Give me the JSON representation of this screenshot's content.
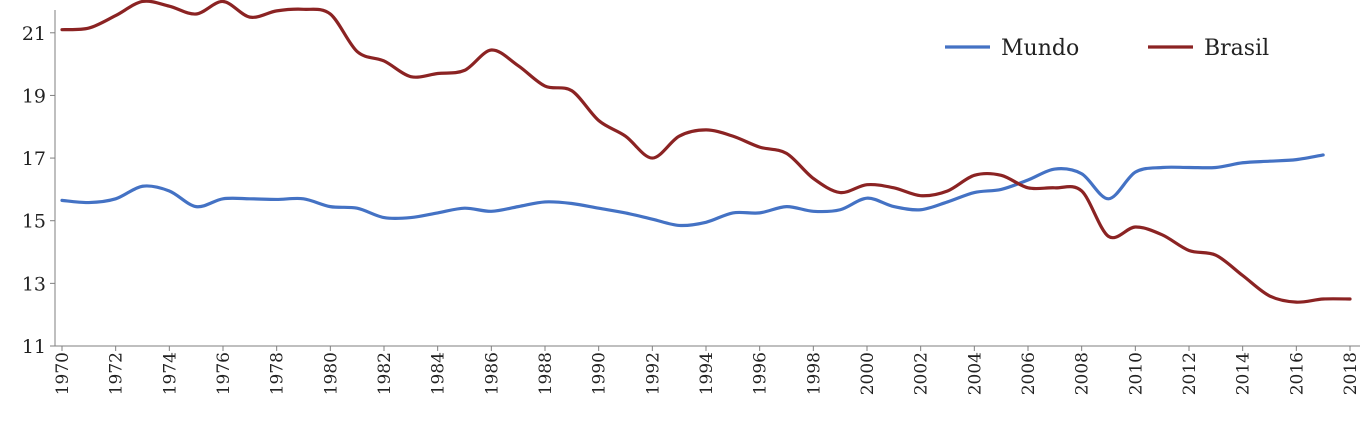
{
  "chart_data": {
    "type": "line",
    "title": "",
    "xlabel": "",
    "ylabel": "",
    "x": [
      1970,
      1971,
      1972,
      1973,
      1974,
      1975,
      1976,
      1977,
      1978,
      1979,
      1980,
      1981,
      1982,
      1983,
      1984,
      1985,
      1986,
      1987,
      1988,
      1989,
      1990,
      1991,
      1992,
      1993,
      1994,
      1995,
      1996,
      1997,
      1998,
      1999,
      2000,
      2001,
      2002,
      2003,
      2004,
      2005,
      2006,
      2007,
      2008,
      2009,
      2010,
      2011,
      2012,
      2013,
      2014,
      2015,
      2016,
      2017,
      2018
    ],
    "xticks": [
      "1970",
      "1972",
      "1974",
      "1976",
      "1978",
      "1980",
      "1982",
      "1984",
      "1986",
      "1988",
      "1990",
      "1992",
      "1994",
      "1996",
      "1998",
      "2000",
      "2002",
      "2004",
      "2006",
      "2008",
      "2010",
      "2012",
      "2014",
      "2016",
      "2018"
    ],
    "yticks": [
      "11",
      "13",
      "15",
      "17",
      "19",
      "21"
    ],
    "ylim": [
      11,
      21.6
    ],
    "xlim": [
      1970,
      2018
    ],
    "grid": false,
    "legend_position": "top-right",
    "series": [
      {
        "name": "Mundo",
        "color": "#4472C4",
        "values": [
          15.65,
          15.58,
          15.7,
          16.1,
          15.95,
          15.45,
          15.7,
          15.7,
          15.68,
          15.7,
          15.45,
          15.4,
          15.1,
          15.1,
          15.25,
          15.4,
          15.3,
          15.45,
          15.6,
          15.55,
          15.4,
          15.25,
          15.05,
          14.85,
          14.95,
          15.25,
          15.25,
          15.45,
          15.3,
          15.35,
          15.72,
          15.45,
          15.35,
          15.6,
          15.9,
          16.0,
          16.3,
          16.65,
          16.5,
          15.7,
          16.55,
          16.7,
          16.7,
          16.7,
          16.85,
          16.9,
          16.95,
          17.1,
          null
        ]
      },
      {
        "name": "Brasil",
        "color": "#8B2323",
        "values": [
          21.1,
          21.15,
          21.55,
          22.0,
          21.85,
          21.6,
          22.0,
          21.5,
          21.7,
          21.75,
          21.6,
          20.4,
          20.1,
          19.6,
          19.7,
          19.8,
          20.45,
          19.95,
          19.3,
          19.15,
          18.2,
          17.7,
          17.0,
          17.7,
          17.9,
          17.7,
          17.35,
          17.15,
          16.35,
          15.9,
          16.15,
          16.05,
          15.8,
          15.95,
          16.45,
          16.45,
          16.05,
          16.05,
          15.95,
          14.5,
          14.8,
          14.55,
          14.05,
          13.9,
          13.25,
          12.6,
          12.4,
          12.5,
          12.5
        ]
      }
    ]
  }
}
